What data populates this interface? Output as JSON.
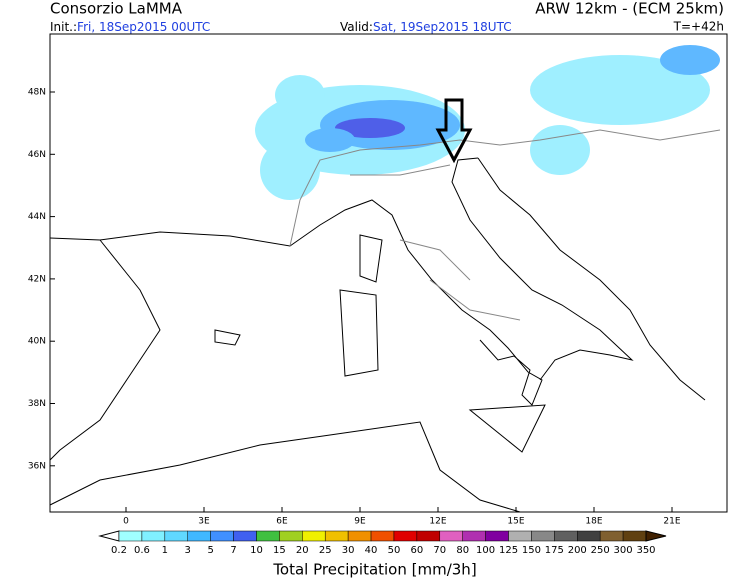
{
  "header": {
    "left": "Consorzio LaMMA",
    "right": "ARW 12km - (ECM 25km)",
    "init_label": "Init.:",
    "init_value": "Fri, 18Sep2015 00UTC",
    "valid_label": "Valid:",
    "valid_value": "Sat, 19Sep2015 18UTC",
    "lead": "T=+42h"
  },
  "map": {
    "lat_labels": [
      "48N",
      "46N",
      "44N",
      "42N",
      "40N",
      "38N",
      "36N"
    ],
    "lon_labels": [
      "0",
      "3E",
      "6E",
      "9E",
      "12E",
      "15E",
      "18E",
      "21E"
    ]
  },
  "colorbar": {
    "labels": [
      "0.2",
      "0.6",
      "1",
      "3",
      "5",
      "7",
      "10",
      "15",
      "20",
      "25",
      "30",
      "40",
      "50",
      "60",
      "70",
      "80",
      "100",
      "125",
      "150",
      "175",
      "200",
      "250",
      "300",
      "350"
    ],
    "title": "Total Precipitation [mm/3h]"
  }
}
